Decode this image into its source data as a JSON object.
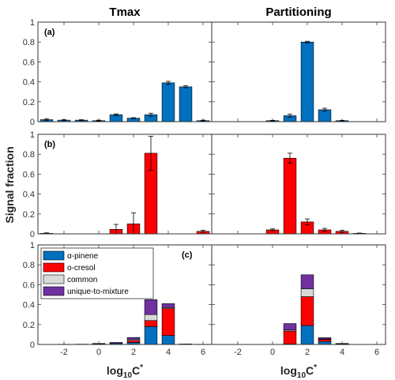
{
  "figure": {
    "column_titles": [
      "Tmax",
      "Partitioning"
    ],
    "ylabel": "Signal fraction",
    "xlabel_base": "log",
    "xlabel_sub": "10",
    "xlabel_rest": "C",
    "xlabel_sup": "*"
  },
  "chart_data": [
    {
      "type": "bar",
      "panel": "(a)",
      "column": "Tmax",
      "x": [
        -3,
        -2,
        -1,
        0,
        1,
        2,
        3,
        4,
        5,
        6
      ],
      "ylim": [
        0,
        1
      ],
      "xlim": [
        -3.5,
        6.5
      ],
      "yticks": [
        "0",
        "0.2",
        "0.4",
        "0.6",
        "0.8",
        "1"
      ],
      "xticks": [
        "-2",
        "0",
        "2",
        "4",
        "6"
      ],
      "series": [
        {
          "color": "#0070c0",
          "values": [
            0.02,
            0.015,
            0.015,
            0.01,
            0.07,
            0.035,
            0.07,
            0.39,
            0.35,
            0.01
          ],
          "errors": [
            0.01,
            0.005,
            0.005,
            0.005,
            0.008,
            0.005,
            0.015,
            0.015,
            0.01,
            0.005
          ]
        }
      ]
    },
    {
      "type": "bar",
      "panel": "(b)",
      "column": "Tmax",
      "x": [
        -3,
        -2,
        -1,
        0,
        1,
        2,
        3,
        4,
        5,
        6
      ],
      "ylim": [
        0,
        1
      ],
      "xlim": [
        -3.5,
        6.5
      ],
      "yticks": [
        "0",
        "0.2",
        "0.4",
        "0.6",
        "0.8",
        "1"
      ],
      "xticks": [
        "-2",
        "0",
        "2",
        "4",
        "6"
      ],
      "series": [
        {
          "color": "#ff0000",
          "values": [
            0.005,
            0,
            0,
            0,
            0.045,
            0.1,
            0.81,
            0,
            0,
            0.025
          ],
          "errors": [
            0.005,
            0,
            0,
            0,
            0.05,
            0.11,
            0.17,
            0,
            0,
            0.01
          ]
        }
      ]
    },
    {
      "type": "bar",
      "stacked": true,
      "panel": "(c)",
      "column": "Tmax",
      "x": [
        -3,
        -2,
        -1,
        0,
        1,
        2,
        3,
        4,
        5,
        6
      ],
      "ylim": [
        0,
        1
      ],
      "xlim": [
        -3.5,
        6.5
      ],
      "yticks": [
        "0",
        "0.2",
        "0.4",
        "0.6",
        "0.8",
        "1"
      ],
      "xticks": [
        "-2",
        "0",
        "2",
        "4",
        "6"
      ],
      "legend": {
        "position": "top-left"
      },
      "series": [
        {
          "name": "α-pinene",
          "color": "#0070c0",
          "values": [
            0,
            0.002,
            0.003,
            0.005,
            0.01,
            0.02,
            0.18,
            0.09,
            0.005,
            0.002
          ]
        },
        {
          "name": "o-cresol",
          "color": "#ff0000",
          "values": [
            0,
            0,
            0,
            0,
            0,
            0.02,
            0.06,
            0.27,
            0,
            0
          ]
        },
        {
          "name": "common",
          "color": "#d9d9d9",
          "values": [
            0,
            0,
            0,
            0,
            0,
            0.01,
            0.06,
            0.01,
            0,
            0
          ]
        },
        {
          "name": "unique-to-mixture",
          "color": "#7030a0",
          "values": [
            0,
            0,
            0,
            0.005,
            0.01,
            0.02,
            0.15,
            0.04,
            0,
            0
          ]
        }
      ]
    },
    {
      "type": "bar",
      "column": "Partitioning",
      "x": [
        -3,
        -2,
        -1,
        0,
        1,
        2,
        3,
        4,
        5,
        6
      ],
      "ylim": [
        0,
        1
      ],
      "xlim": [
        -3.5,
        6.5
      ],
      "yticks": [
        "0",
        "0.2",
        "0.4",
        "0.6",
        "0.8",
        "1"
      ],
      "xticks": [
        "-2",
        "0",
        "2",
        "4",
        "6"
      ],
      "series": [
        {
          "color": "#0070c0",
          "values": [
            0,
            0,
            0,
            0.01,
            0.06,
            0.8,
            0.12,
            0.01,
            0,
            0
          ],
          "errors": [
            0,
            0,
            0,
            0.003,
            0.015,
            0.008,
            0.015,
            0.003,
            0,
            0
          ]
        }
      ]
    },
    {
      "type": "bar",
      "column": "Partitioning",
      "x": [
        -3,
        -2,
        -1,
        0,
        1,
        2,
        3,
        4,
        5,
        6
      ],
      "ylim": [
        0,
        1
      ],
      "xlim": [
        -3.5,
        6.5
      ],
      "yticks": [
        "0",
        "0.2",
        "0.4",
        "0.6",
        "0.8",
        "1"
      ],
      "xticks": [
        "-2",
        "0",
        "2",
        "4",
        "6"
      ],
      "series": [
        {
          "color": "#ff0000",
          "values": [
            0,
            0,
            0,
            0.04,
            0.76,
            0.12,
            0.04,
            0.025,
            0.005,
            0
          ],
          "errors": [
            0,
            0,
            0,
            0.01,
            0.05,
            0.03,
            0.015,
            0.01,
            0.003,
            0
          ]
        }
      ]
    },
    {
      "type": "bar",
      "stacked": true,
      "column": "Partitioning",
      "x": [
        -3,
        -2,
        -1,
        0,
        1,
        2,
        3,
        4,
        5,
        6
      ],
      "ylim": [
        0,
        1
      ],
      "xlim": [
        -3.5,
        6.5
      ],
      "yticks": [
        "0",
        "0.2",
        "0.4",
        "0.6",
        "0.8",
        "1"
      ],
      "xticks": [
        "-2",
        "0",
        "2",
        "4",
        "6"
      ],
      "series": [
        {
          "name": "α-pinene",
          "color": "#0070c0",
          "values": [
            0,
            0,
            0,
            0,
            0.005,
            0.19,
            0.03,
            0.002,
            0,
            0
          ]
        },
        {
          "name": "o-cresol",
          "color": "#ff0000",
          "values": [
            0,
            0,
            0,
            0,
            0.13,
            0.29,
            0.02,
            0.005,
            0,
            0
          ]
        },
        {
          "name": "common",
          "color": "#d9d9d9",
          "values": [
            0,
            0,
            0,
            0,
            0.01,
            0.08,
            0.005,
            0,
            0,
            0
          ]
        },
        {
          "name": "unique-to-mixture",
          "color": "#7030a0",
          "values": [
            0,
            0,
            0,
            0,
            0.065,
            0.14,
            0.013,
            0.003,
            0,
            0
          ]
        }
      ]
    }
  ]
}
